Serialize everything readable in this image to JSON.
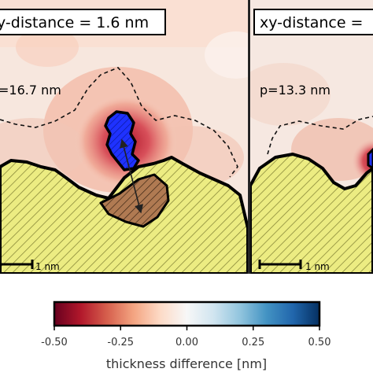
{
  "panels": [
    {
      "xy_label": "y-distance = 1.6 nm",
      "p_label": "=16.7 nm",
      "scale_label": "1 nm"
    },
    {
      "xy_label": "xy-distance =",
      "p_label": "p=13.3 nm",
      "scale_label": "1 nm"
    }
  ],
  "colorbar": {
    "tick_labels": [
      "-0.50",
      "-0.25",
      "0.00",
      "0.25",
      "0.50"
    ],
    "tick_values": [
      -0.5,
      -0.25,
      0.0,
      0.25,
      0.5
    ],
    "range": [
      -0.5,
      0.5
    ],
    "colormap": [
      "#67001f",
      "#b2182b",
      "#d6604d",
      "#f4a582",
      "#fddbc7",
      "#f7f7f7",
      "#d1e5f0",
      "#92c5de",
      "#4393c3",
      "#2166ac",
      "#053061"
    ],
    "label": "thickness difference [nm]"
  },
  "colors": {
    "substrate": "#ecec82",
    "substrate_hatch": "#8a8a3a",
    "particle": "#b07a52",
    "blue_region": "#1f32ff",
    "heat_light": "#f6d9cb",
    "heat_mid": "#e59a82",
    "heat_dark": "#c42838"
  }
}
